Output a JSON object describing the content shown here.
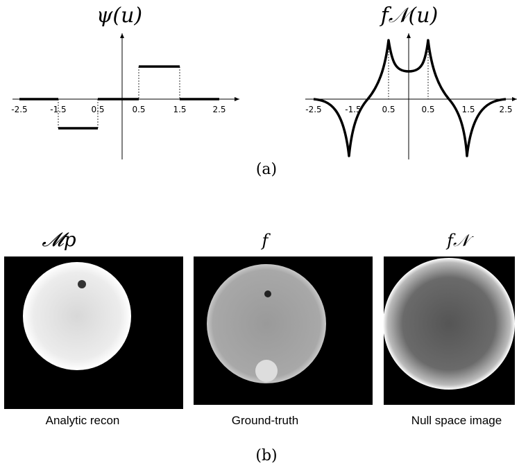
{
  "panel_a": {
    "left_plot": {
      "title": "ψ(u)",
      "tick_labels": [
        "-2.5",
        "-1.5",
        "0.5",
        "0.5",
        "1.5",
        "2.5"
      ]
    },
    "right_plot": {
      "title": "f𝒩(u)",
      "tick_labels": [
        "-2.5",
        "-1.5",
        "0.5",
        "0.5",
        "1.5",
        "2.5"
      ]
    },
    "caption": "(a)"
  },
  "panel_b": {
    "images": [
      {
        "title": "𝓜p",
        "label": "Analytic recon"
      },
      {
        "title": "f",
        "label": "Ground-truth"
      },
      {
        "title": "f𝒩",
        "label": "Null space image"
      }
    ],
    "caption": "(b)"
  }
}
